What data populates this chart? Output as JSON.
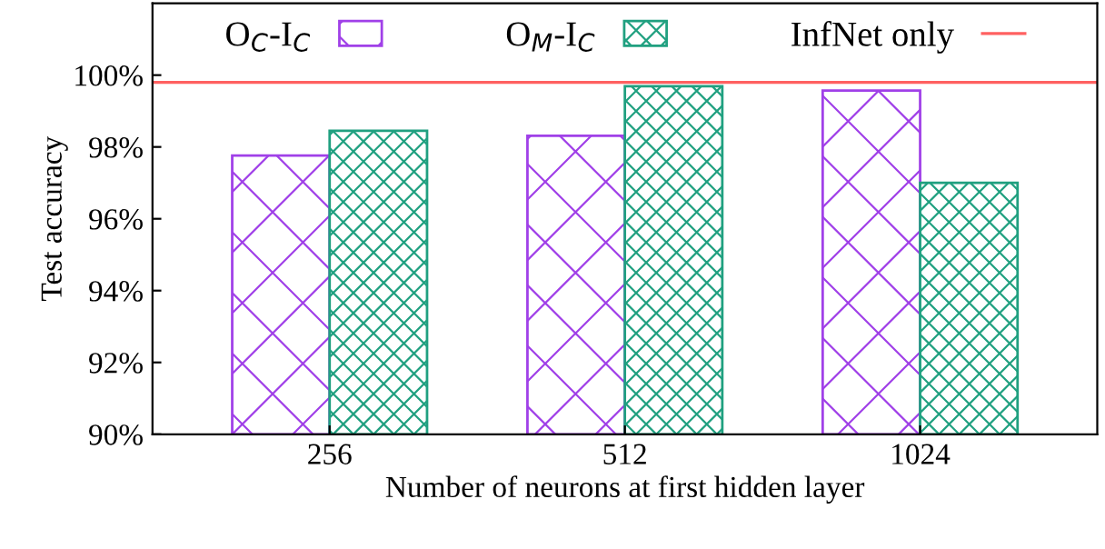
{
  "chart_data": {
    "type": "bar",
    "xlabel": "Number of neurons at first hidden layer",
    "ylabel": "Test accuracy",
    "categories": [
      "256",
      "512",
      "1024"
    ],
    "series": [
      {
        "name": "O$_{C}$-I$_{C}$",
        "color": "#a040e8",
        "values": [
          97.76,
          98.31,
          99.57
        ]
      },
      {
        "name": "O$_{M}$-I$_{C}$",
        "color": "#20a080",
        "values": [
          98.45,
          99.69,
          97.0
        ]
      }
    ],
    "ylim": [
      90,
      102
    ],
    "yticks": [
      {
        "value": 90,
        "label": "90%"
      },
      {
        "value": 92,
        "label": "92%"
      },
      {
        "value": 94,
        "label": "94%"
      },
      {
        "value": 96,
        "label": "96%"
      },
      {
        "value": 98,
        "label": "98%"
      },
      {
        "value": 100,
        "label": "100%"
      }
    ],
    "ref_lines": [
      {
        "axis": "y",
        "value": 99.8,
        "label": "InfNet only",
        "color": "#ff6060"
      }
    ],
    "grid": false,
    "legend": "top"
  }
}
